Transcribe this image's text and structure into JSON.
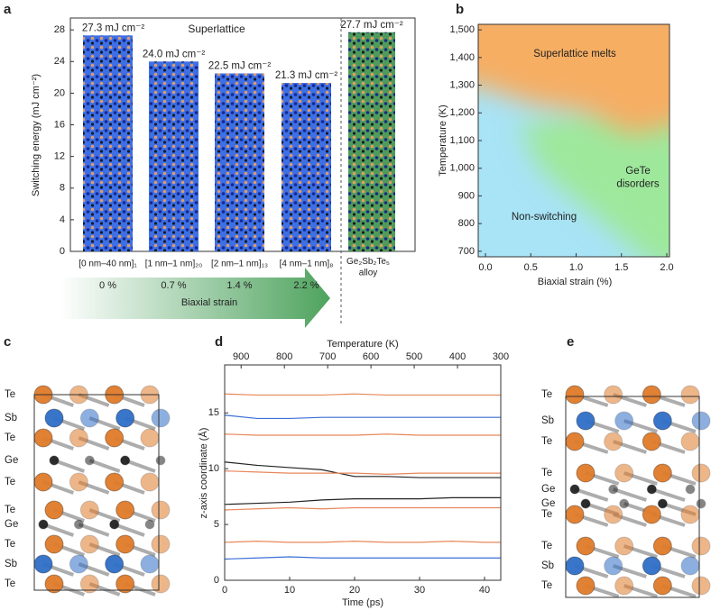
{
  "chart_data": [
    {
      "panel": "a",
      "type": "bar",
      "ylabel": "Switching energy (mJ cm⁻²)",
      "annotation": "Superlattice",
      "categories": [
        "[0 nm–40 nm]₁",
        "[1 nm–1 nm]₂₀",
        "[2 nm–1 nm]₁₃",
        "[4 nm–1 nm]₈",
        "Ge₂Sb₂Te₅\nalloy"
      ],
      "values": [
        27.3,
        24.0,
        22.5,
        21.3,
        27.7
      ],
      "value_labels": [
        "27.3 mJ cm⁻²",
        "24.0 mJ cm⁻²",
        "22.5 mJ cm⁻²",
        "21.3 mJ cm⁻²",
        "27.7 mJ cm⁻²"
      ],
      "colors": [
        "#3d6fe6",
        "#3d6fe6",
        "#3d6fe6",
        "#3d6fe6",
        "#4f9b5d"
      ],
      "value_label_colors": [
        "#222222",
        "#222222",
        "#222222",
        "#e8202a",
        "#222222"
      ],
      "strain_labels": [
        "0 %",
        "0.7 %",
        "1.4 %",
        "2.2 %"
      ],
      "strain_title": "Biaxial strain",
      "ylim": [
        0,
        29.5
      ],
      "yticks": [
        0,
        4,
        8,
        12,
        16,
        20,
        24,
        28
      ]
    },
    {
      "panel": "b",
      "type": "phase",
      "xlabel": "Biaxial strain (%)",
      "ylabel": "Temperature (K)",
      "xlim": [
        -0.08,
        2.03
      ],
      "xticks": [
        {
          "value": 0,
          "label": "0.0"
        },
        0.5,
        {
          "value": 1,
          "label": "1.0"
        },
        1.5,
        {
          "value": 2,
          "label": "2.0"
        }
      ],
      "ylim": [
        680,
        1520
      ],
      "yticks": [
        700,
        800,
        900,
        {
          "value": 1000,
          "label": "1,000"
        },
        {
          "value": 1100,
          "label": "1,100"
        },
        {
          "value": 1200,
          "label": "1,200"
        },
        {
          "value": 1300,
          "label": "1,300"
        },
        {
          "value": 1400,
          "label": "1,400"
        },
        {
          "value": 1500,
          "label": "1,500"
        }
      ],
      "regions": [
        "Superlattice melts",
        "GeTe\ndisorders",
        "Non-switching"
      ],
      "region_colors": [
        "#f6ae64",
        "#9ee89c",
        "#a8e3f6"
      ]
    },
    {
      "panel": "c",
      "type": "structure",
      "labels": [
        "Te",
        "Sb",
        "Te",
        "Ge",
        "Te",
        "Te",
        "Ge",
        "Te",
        "Sb",
        "Te"
      ],
      "label_colors": [
        "#e07b2a",
        "#2f6fc8",
        "#e07b2a",
        "#222222",
        "#e07b2a",
        "#e07b2a",
        "#222222",
        "#e07b2a",
        "#2f6fc8",
        "#e07b2a"
      ]
    },
    {
      "panel": "d",
      "type": "line",
      "xlabel": "Time (ps)",
      "ylabel": "z-axis coordinate (Å)",
      "x2label": "Temperature (K)",
      "xlim": [
        0,
        42.5
      ],
      "xticks": [
        0,
        10,
        20,
        30,
        40
      ],
      "x2lim": [
        938,
        300
      ],
      "x2ticks": [
        900,
        800,
        700,
        600,
        500,
        400,
        300
      ],
      "ylim": [
        0,
        19.3
      ],
      "yticks": [
        0,
        5,
        10,
        15
      ],
      "x": [
        0,
        5,
        10,
        15,
        20,
        25,
        30,
        35,
        40,
        42.5
      ],
      "series": [
        {
          "color": "#e8875a",
          "values": [
            16.7,
            16.6,
            16.6,
            16.6,
            16.7,
            16.6,
            16.6,
            16.6,
            16.6,
            16.6
          ]
        },
        {
          "color": "#3d6fd6",
          "values": [
            14.8,
            14.5,
            14.5,
            14.6,
            14.6,
            14.6,
            14.6,
            14.6,
            14.6,
            14.6
          ]
        },
        {
          "color": "#e8875a",
          "values": [
            13.1,
            13.0,
            13.0,
            13.0,
            13.0,
            13.1,
            13.0,
            13.0,
            13.0,
            13.0
          ]
        },
        {
          "color": "#222222",
          "values": [
            10.6,
            10.3,
            10.1,
            9.9,
            9.3,
            9.3,
            9.2,
            9.2,
            9.2,
            9.2
          ]
        },
        {
          "color": "#e8875a",
          "values": [
            9.8,
            9.7,
            9.6,
            9.6,
            9.6,
            9.5,
            9.6,
            9.6,
            9.6,
            9.6
          ]
        },
        {
          "color": "#222222",
          "values": [
            6.8,
            6.9,
            7.0,
            7.2,
            7.3,
            7.3,
            7.3,
            7.4,
            7.4,
            7.4
          ]
        },
        {
          "color": "#e8875a",
          "values": [
            6.3,
            6.4,
            6.5,
            6.4,
            6.5,
            6.5,
            6.5,
            6.5,
            6.5,
            6.5
          ]
        },
        {
          "color": "#e8875a",
          "values": [
            3.4,
            3.5,
            3.4,
            3.4,
            3.5,
            3.4,
            3.4,
            3.5,
            3.4,
            3.4
          ]
        },
        {
          "color": "#3d6fd6",
          "values": [
            1.9,
            2.0,
            2.1,
            2.0,
            2.0,
            2.0,
            2.0,
            2.0,
            2.0,
            2.0
          ]
        }
      ]
    },
    {
      "panel": "e",
      "type": "structure",
      "labels": [
        "Te",
        "Sb",
        "Te",
        "Te",
        "Ge",
        "Ge",
        "Te",
        "Te",
        "Sb",
        "Te"
      ],
      "label_colors": [
        "#e07b2a",
        "#2f6fc8",
        "#e07b2a",
        "#e07b2a",
        "#222222",
        "#222222",
        "#e07b2a",
        "#e07b2a",
        "#2f6fc8",
        "#e07b2a"
      ]
    }
  ]
}
